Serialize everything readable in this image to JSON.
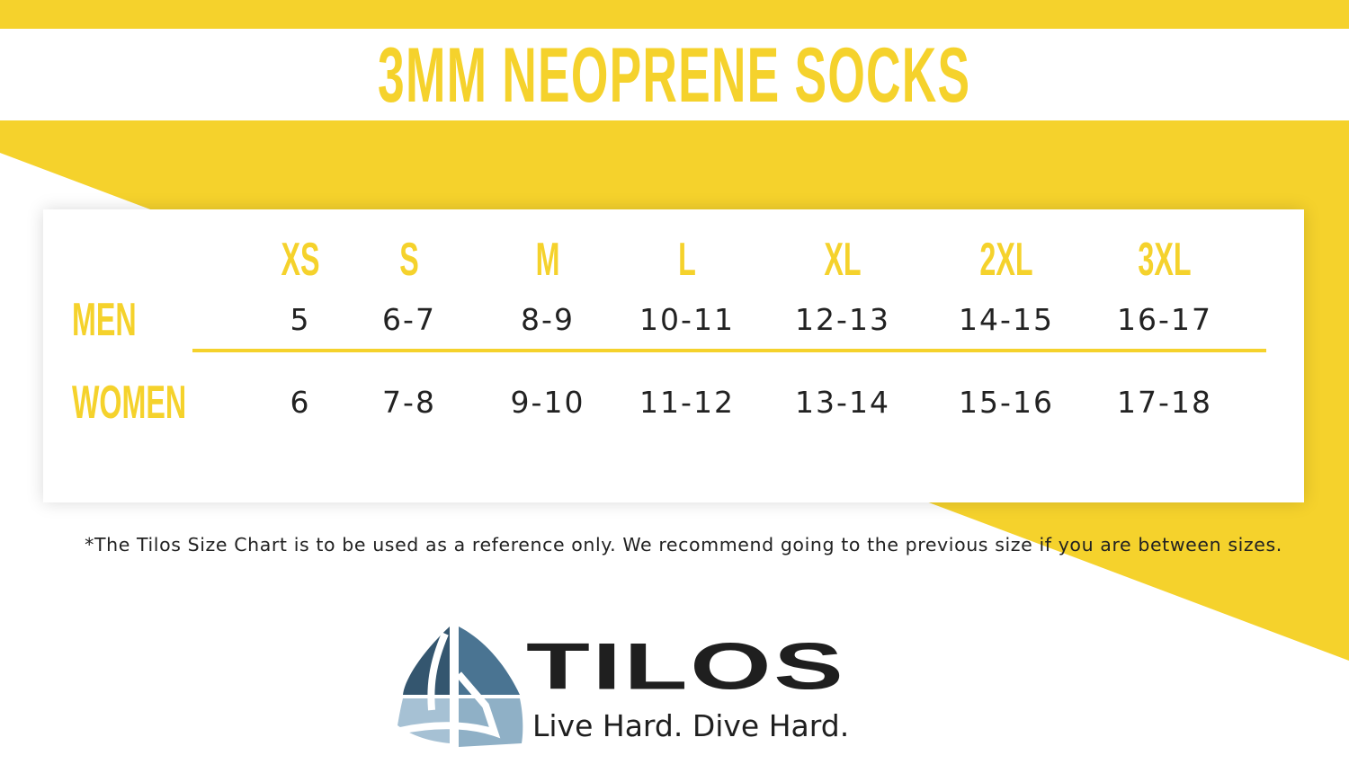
{
  "title": "3MM NEOPRENE SOCKS",
  "colors": {
    "accent": "#f5d22c",
    "logo_dark": "#3d627d",
    "logo_light": "#a6c1d4"
  },
  "sizes": [
    "XS",
    "S",
    "M",
    "L",
    "XL",
    "2XL",
    "3XL"
  ],
  "rows": [
    {
      "label": "MEN",
      "values": [
        "5",
        "6-7",
        "8-9",
        "10-11",
        "12-13",
        "14-15",
        "16-17"
      ]
    },
    {
      "label": "WOMEN",
      "values": [
        "6",
        "7-8",
        "9-10",
        "11-12",
        "13-14",
        "15-16",
        "17-18"
      ]
    }
  ],
  "note": "*The Tilos Size Chart is to be used as a reference only. We recommend going to the previous size if you are between sizes.",
  "brand": {
    "name": "TILOS",
    "tagline": "Live Hard. Dive Hard."
  }
}
